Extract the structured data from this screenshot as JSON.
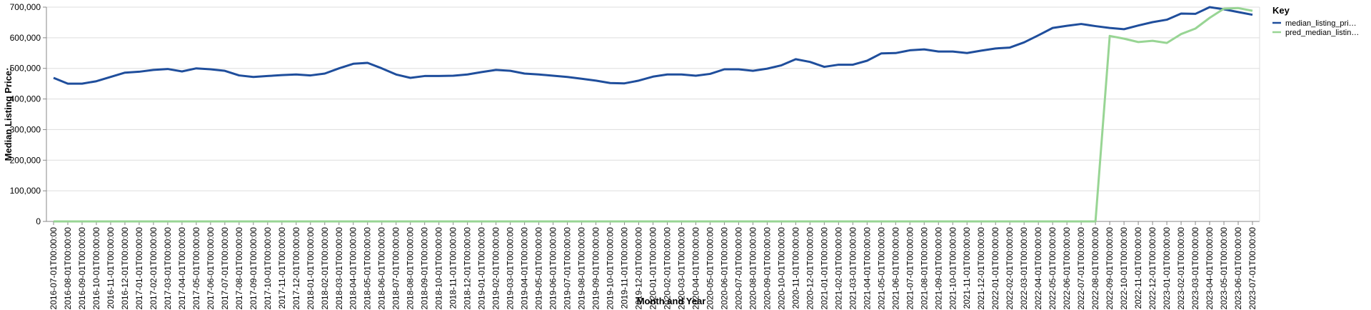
{
  "chart_data": {
    "type": "line",
    "x_label": "Month and Year",
    "y_label": "Median Listing Price:",
    "legend_title": "Key",
    "legend_position": "right",
    "grid": true,
    "categories": [
      "2016-07-01T00:00:00",
      "2016-08-01T00:00:00",
      "2016-09-01T00:00:00",
      "2016-10-01T00:00:00",
      "2016-11-01T00:00:00",
      "2016-12-01T00:00:00",
      "2017-01-01T00:00:00",
      "2017-02-01T00:00:00",
      "2017-03-01T00:00:00",
      "2017-04-01T00:00:00",
      "2017-05-01T00:00:00",
      "2017-06-01T00:00:00",
      "2017-07-01T00:00:00",
      "2017-08-01T00:00:00",
      "2017-09-01T00:00:00",
      "2017-10-01T00:00:00",
      "2017-11-01T00:00:00",
      "2017-12-01T00:00:00",
      "2018-01-01T00:00:00",
      "2018-02-01T00:00:00",
      "2018-03-01T00:00:00",
      "2018-04-01T00:00:00",
      "2018-05-01T00:00:00",
      "2018-06-01T00:00:00",
      "2018-07-01T00:00:00",
      "2018-08-01T00:00:00",
      "2018-09-01T00:00:00",
      "2018-10-01T00:00:00",
      "2018-11-01T00:00:00",
      "2018-12-01T00:00:00",
      "2019-01-01T00:00:00",
      "2019-02-01T00:00:00",
      "2019-03-01T00:00:00",
      "2019-04-01T00:00:00",
      "2019-05-01T00:00:00",
      "2019-06-01T00:00:00",
      "2019-07-01T00:00:00",
      "2019-08-01T00:00:00",
      "2019-09-01T00:00:00",
      "2019-10-01T00:00:00",
      "2019-11-01T00:00:00",
      "2019-12-01T00:00:00",
      "2020-01-01T00:00:00",
      "2020-02-01T00:00:00",
      "2020-03-01T00:00:00",
      "2020-04-01T00:00:00",
      "2020-05-01T00:00:00",
      "2020-06-01T00:00:00",
      "2020-07-01T00:00:00",
      "2020-08-01T00:00:00",
      "2020-09-01T00:00:00",
      "2020-10-01T00:00:00",
      "2020-11-01T00:00:00",
      "2020-12-01T00:00:00",
      "2021-01-01T00:00:00",
      "2021-02-01T00:00:00",
      "2021-03-01T00:00:00",
      "2021-04-01T00:00:00",
      "2021-05-01T00:00:00",
      "2021-06-01T00:00:00",
      "2021-07-01T00:00:00",
      "2021-08-01T00:00:00",
      "2021-09-01T00:00:00",
      "2021-10-01T00:00:00",
      "2021-11-01T00:00:00",
      "2021-12-01T00:00:00",
      "2022-01-01T00:00:00",
      "2022-02-01T00:00:00",
      "2022-03-01T00:00:00",
      "2022-04-01T00:00:00",
      "2022-05-01T00:00:00",
      "2022-06-01T00:00:00",
      "2022-07-01T00:00:00",
      "2022-08-01T00:00:00",
      "2022-09-01T00:00:00",
      "2022-10-01T00:00:00",
      "2022-11-01T00:00:00",
      "2022-12-01T00:00:00",
      "2023-01-01T00:00:00",
      "2023-02-01T00:00:00",
      "2023-03-01T00:00:00",
      "2023-04-01T00:00:00",
      "2023-05-01T00:00:00",
      "2023-06-01T00:00:00",
      "2023-07-01T00:00:00"
    ],
    "series": [
      {
        "name": "median_listing_pri…",
        "color": "#1f4e9c",
        "values": [
          469000,
          450000,
          450000,
          458000,
          472000,
          486000,
          489000,
          495000,
          498000,
          490000,
          500000,
          497000,
          492000,
          477000,
          472000,
          475000,
          478000,
          480000,
          477000,
          483000,
          500000,
          515000,
          518000,
          500000,
          480000,
          469000,
          475000,
          475000,
          476000,
          480000,
          488000,
          495000,
          492000,
          483000,
          480000,
          476000,
          472000,
          466000,
          460000,
          452000,
          451000,
          460000,
          473000,
          480000,
          480000,
          476000,
          482000,
          497000,
          497000,
          492000,
          499000,
          510000,
          530000,
          521000,
          505000,
          512000,
          512000,
          525000,
          549000,
          550000,
          559000,
          562000,
          555000,
          555000,
          550000,
          558000,
          565000,
          568000,
          585000,
          608000,
          632000,
          639000,
          645000,
          638000,
          632000,
          628000,
          640000,
          651000,
          659000,
          679000,
          678000,
          700000,
          693000,
          684000,
          675000
        ]
      },
      {
        "name": "pred_median_listin…",
        "color": "#98d594",
        "values": [
          0,
          0,
          0,
          0,
          0,
          0,
          0,
          0,
          0,
          0,
          0,
          0,
          0,
          0,
          0,
          0,
          0,
          0,
          0,
          0,
          0,
          0,
          0,
          0,
          0,
          0,
          0,
          0,
          0,
          0,
          0,
          0,
          0,
          0,
          0,
          0,
          0,
          0,
          0,
          0,
          0,
          0,
          0,
          0,
          0,
          0,
          0,
          0,
          0,
          0,
          0,
          0,
          0,
          0,
          0,
          0,
          0,
          0,
          0,
          0,
          0,
          0,
          0,
          0,
          0,
          0,
          0,
          0,
          0,
          0,
          0,
          0,
          0,
          0,
          606000,
          597000,
          586000,
          590000,
          583000,
          612000,
          630000,
          665000,
          695000,
          697000,
          688000
        ]
      }
    ],
    "ylim": [
      0,
      700000
    ],
    "yticks": [
      0,
      {
        "value": 100000,
        "label": "100,000"
      },
      {
        "value": 200000,
        "label": "200,000"
      },
      {
        "value": 300000,
        "label": "300,000"
      },
      {
        "value": 400000,
        "label": "400,000"
      },
      {
        "value": 500000,
        "label": "500,000"
      },
      {
        "value": 600000,
        "label": "600,000"
      },
      {
        "value": 700000,
        "label": "700,000"
      }
    ]
  }
}
